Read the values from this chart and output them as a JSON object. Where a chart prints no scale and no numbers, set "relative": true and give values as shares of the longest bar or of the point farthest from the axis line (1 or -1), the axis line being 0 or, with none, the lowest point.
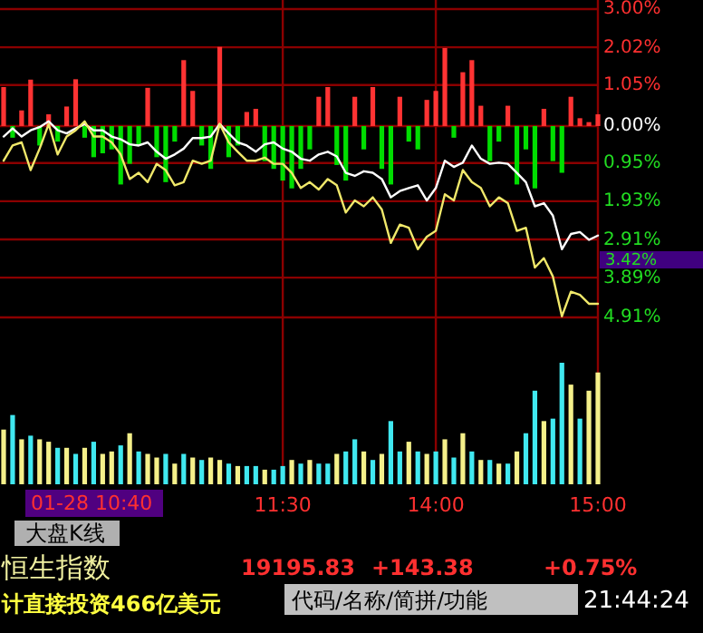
{
  "chart_data": [
    {
      "type": "line",
      "categories": [
        null,
        null,
        null,
        null,
        null,
        null,
        null,
        null,
        null,
        null,
        null,
        null,
        null,
        null,
        null,
        null,
        null,
        null,
        null,
        null,
        null,
        null,
        null,
        null,
        null,
        null,
        null,
        null,
        null,
        null,
        null,
        null,
        null,
        null,
        null,
        null,
        null,
        null,
        null,
        null,
        null,
        null,
        null,
        null,
        null,
        null,
        null,
        null,
        null,
        null,
        null,
        null,
        null,
        null,
        null,
        null,
        null,
        null,
        null,
        null,
        null,
        null,
        null,
        null,
        null,
        null,
        null
      ],
      "ylim": [
        -4.91,
        3.0
      ],
      "yticks": [
        {
          "value": 3,
          "label": "3.00%"
        },
        {
          "value": 2.02,
          "label": "2.02%"
        },
        {
          "value": 1.05,
          "label": "1.05%"
        },
        {
          "value": 0,
          "label": "0.00%"
        },
        {
          "value": -0.95,
          "label": "0.95%"
        },
        {
          "value": -1.93,
          "label": "1.93%"
        },
        {
          "value": -2.91,
          "label": "2.91%"
        },
        {
          "value": -3.89,
          "label": "3.89%"
        },
        {
          "value": -4.91,
          "label": "4.91%"
        }
      ],
      "tick_labels": "y",
      "grid": true,
      "series": [
        {
          "type": "bar",
          "values": [
            1.0,
            -0.3,
            0.4,
            1.19,
            -0.5,
            0.3,
            -0.4,
            0.5,
            1.2,
            -0.3,
            -0.8,
            -0.7,
            -0.6,
            -1.5,
            -0.97,
            -0.5,
            0.98,
            -0.8,
            -1.44,
            -0.4,
            1.69,
            0.9,
            -0.5,
            -1.1,
            2.03,
            -0.8,
            -0.5,
            0.36,
            0.44,
            -0.9,
            -1.1,
            -1.4,
            -1.6,
            -1.1,
            -0.6,
            0.75,
            1.0,
            -1.0,
            -1.4,
            0.75,
            -0.6,
            1.0,
            -1.1,
            -1.5,
            0.75,
            -0.4,
            -0.6,
            0.67,
            0.9,
            2.0,
            -0.3,
            1.38,
            1.69,
            0.52,
            -0.9,
            -0.4,
            0.52,
            -1.5,
            -0.6,
            -1.6,
            0.44,
            -0.9,
            -1.2,
            0.75,
            0.2,
            0.1,
            0.3
          ],
          "colors": [
            "#ff3333",
            "#00dd00",
            "#ff3333",
            "#ff3333",
            "#00dd00",
            "#ff3333",
            "#00dd00",
            "#ff3333",
            "#ff3333",
            "#00dd00",
            "#00dd00",
            "#00dd00",
            "#00dd00",
            "#00dd00",
            "#00dd00",
            "#00dd00",
            "#ff3333",
            "#00dd00",
            "#00dd00",
            "#00dd00",
            "#ff3333",
            "#ff3333",
            "#00dd00",
            "#00dd00",
            "#ff3333",
            "#00dd00",
            "#00dd00",
            "#ff3333",
            "#ff3333",
            "#00dd00",
            "#00dd00",
            "#00dd00",
            "#00dd00",
            "#00dd00",
            "#00dd00",
            "#ff3333",
            "#ff3333",
            "#00dd00",
            "#00dd00",
            "#ff3333",
            "#00dd00",
            "#ff3333",
            "#00dd00",
            "#00dd00",
            "#ff3333",
            "#00dd00",
            "#00dd00",
            "#ff3333",
            "#ff3333",
            "#ff3333",
            "#00dd00",
            "#ff3333",
            "#ff3333",
            "#ff3333",
            "#00dd00",
            "#00dd00",
            "#ff3333",
            "#00dd00",
            "#00dd00",
            "#00dd00",
            "#ff3333",
            "#00dd00",
            "#00dd00",
            "#ff3333",
            "#ff3333",
            "#ff3333",
            "#ff3333"
          ]
        },
        {
          "color": "#ffffff",
          "values": [
            -0.27,
            -0.06,
            -0.27,
            -0.11,
            -0.03,
            0.12,
            -0.11,
            -0.19,
            -0.06,
            0.05,
            -0.11,
            -0.11,
            -0.27,
            -0.34,
            -0.47,
            -0.5,
            -0.42,
            -0.66,
            -0.84,
            -0.73,
            -0.58,
            -0.31,
            -0.31,
            -0.27,
            0.05,
            -0.19,
            -0.42,
            -0.5,
            -0.66,
            -0.47,
            -0.42,
            -0.58,
            -0.66,
            -0.84,
            -0.89,
            -0.73,
            -0.66,
            -0.78,
            -1.2,
            -1.28,
            -1.16,
            -1.2,
            -1.36,
            -1.83,
            -1.67,
            -1.59,
            -1.52,
            -1.91,
            -1.59,
            -0.89,
            -1.05,
            -0.94,
            -0.5,
            -0.84,
            -0.97,
            -0.94,
            -0.97,
            -1.2,
            -1.44,
            -2.06,
            -1.98,
            -2.3,
            -3.16,
            -2.77,
            -2.72,
            -2.92,
            -2.81
          ]
        },
        {
          "color": "#f0e86a",
          "values": [
            -0.89,
            -0.5,
            -0.42,
            -1.13,
            -0.58,
            0.05,
            -0.73,
            -0.27,
            -0.11,
            0.12,
            -0.27,
            -0.27,
            -0.42,
            -0.73,
            -1.36,
            -1.2,
            -1.44,
            -0.97,
            -1.13,
            -1.52,
            -1.44,
            -0.89,
            -0.97,
            -0.89,
            0.05,
            -0.42,
            -0.66,
            -0.89,
            -0.89,
            -0.81,
            -0.97,
            -0.97,
            -1.2,
            -1.59,
            -1.44,
            -1.63,
            -1.36,
            -1.52,
            -2.22,
            -1.91,
            -2.06,
            -1.83,
            -2.14,
            -3.0,
            -2.53,
            -2.61,
            -3.16,
            -2.84,
            -2.69,
            -1.75,
            -1.91,
            -1.13,
            -1.44,
            -1.59,
            -2.06,
            -1.83,
            -1.98,
            -2.69,
            -2.61,
            -3.63,
            -3.39,
            -3.86,
            -4.88,
            -4.25,
            -4.33,
            -4.56,
            -4.56
          ]
        }
      ],
      "annotations": [
        "3.42%"
      ]
    },
    {
      "type": "bar",
      "relative": true,
      "tick_labels": "x",
      "grid": "x",
      "categories": [
        null,
        null,
        null,
        null,
        null,
        null,
        null,
        null,
        null,
        null,
        null,
        null,
        null,
        null,
        null,
        null,
        null,
        null,
        null,
        null,
        null,
        null,
        null,
        null,
        null,
        null,
        null,
        null,
        null,
        null,
        null,
        "11:30",
        null,
        null,
        null,
        null,
        null,
        null,
        null,
        null,
        null,
        null,
        null,
        null,
        null,
        null,
        null,
        null,
        "14:00",
        null,
        null,
        null,
        null,
        null,
        null,
        null,
        null,
        null,
        null,
        null,
        null,
        null,
        null,
        null,
        null,
        null,
        "15:00"
      ],
      "values": [
        0.45,
        0.57,
        0.37,
        0.4,
        0.37,
        0.35,
        0.3,
        0.3,
        0.25,
        0.3,
        0.35,
        0.25,
        0.27,
        0.32,
        0.42,
        0.27,
        0.25,
        0.22,
        0.25,
        0.17,
        0.25,
        0.22,
        0.2,
        0.22,
        0.2,
        0.17,
        0.15,
        0.15,
        0.15,
        0.12,
        0.12,
        0.15,
        0.2,
        0.17,
        0.2,
        0.17,
        0.17,
        0.25,
        0.27,
        0.37,
        0.27,
        0.2,
        0.25,
        0.52,
        0.27,
        0.35,
        0.27,
        0.25,
        0.27,
        0.37,
        0.22,
        0.42,
        0.27,
        0.2,
        0.2,
        0.17,
        0.17,
        0.27,
        0.42,
        0.77,
        0.52,
        0.54,
        1,
        0.82,
        0.54,
        0.77,
        0.92
      ],
      "colors": [
        "#f5f08a",
        "#40e8f0",
        "#f5f08a",
        "#40e8f0",
        "#f5f08a",
        "#f5f08a",
        "#40e8f0",
        "#f5f08a",
        "#40e8f0",
        "#f5f08a",
        "#40e8f0",
        "#f5f08a",
        "#f5f08a",
        "#40e8f0",
        "#f5f08a",
        "#40e8f0",
        "#f5f08a",
        "#f5f08a",
        "#40e8f0",
        "#f5f08a",
        "#40e8f0",
        "#f5f08a",
        "#40e8f0",
        "#f5f08a",
        "#f5f08a",
        "#40e8f0",
        "#f5f08a",
        "#40e8f0",
        "#40e8f0",
        "#f5f08a",
        "#40e8f0",
        "#40e8f0",
        "#f5f08a",
        "#40e8f0",
        "#f5f08a",
        "#40e8f0",
        "#40e8f0",
        "#f5f08a",
        "#40e8f0",
        "#40e8f0",
        "#f5f08a",
        "#40e8f0",
        "#f5f08a",
        "#40e8f0",
        "#40e8f0",
        "#f5f08a",
        "#40e8f0",
        "#f5f08a",
        "#40e8f0",
        "#f5f08a",
        "#40e8f0",
        "#f5f08a",
        "#40e8f0",
        "#f5f08a",
        "#40e8f0",
        "#f5f08a",
        "#40e8f0",
        "#f5f08a",
        "#40e8f0",
        "#40e8f0",
        "#f5f08a",
        "#40e8f0",
        "#40e8f0",
        "#f5f08a",
        "#40e8f0",
        "#f5f08a",
        "#f5f08a"
      ],
      "annotations": [
        "01-28 10:40",
        "大盘K线",
        "恒生指数",
        "19195.83",
        "+143.38",
        "+0.75%",
        "计直接投资466亿美元",
        "代码/名称/简拼/功能",
        "21:44:24"
      ]
    }
  ]
}
